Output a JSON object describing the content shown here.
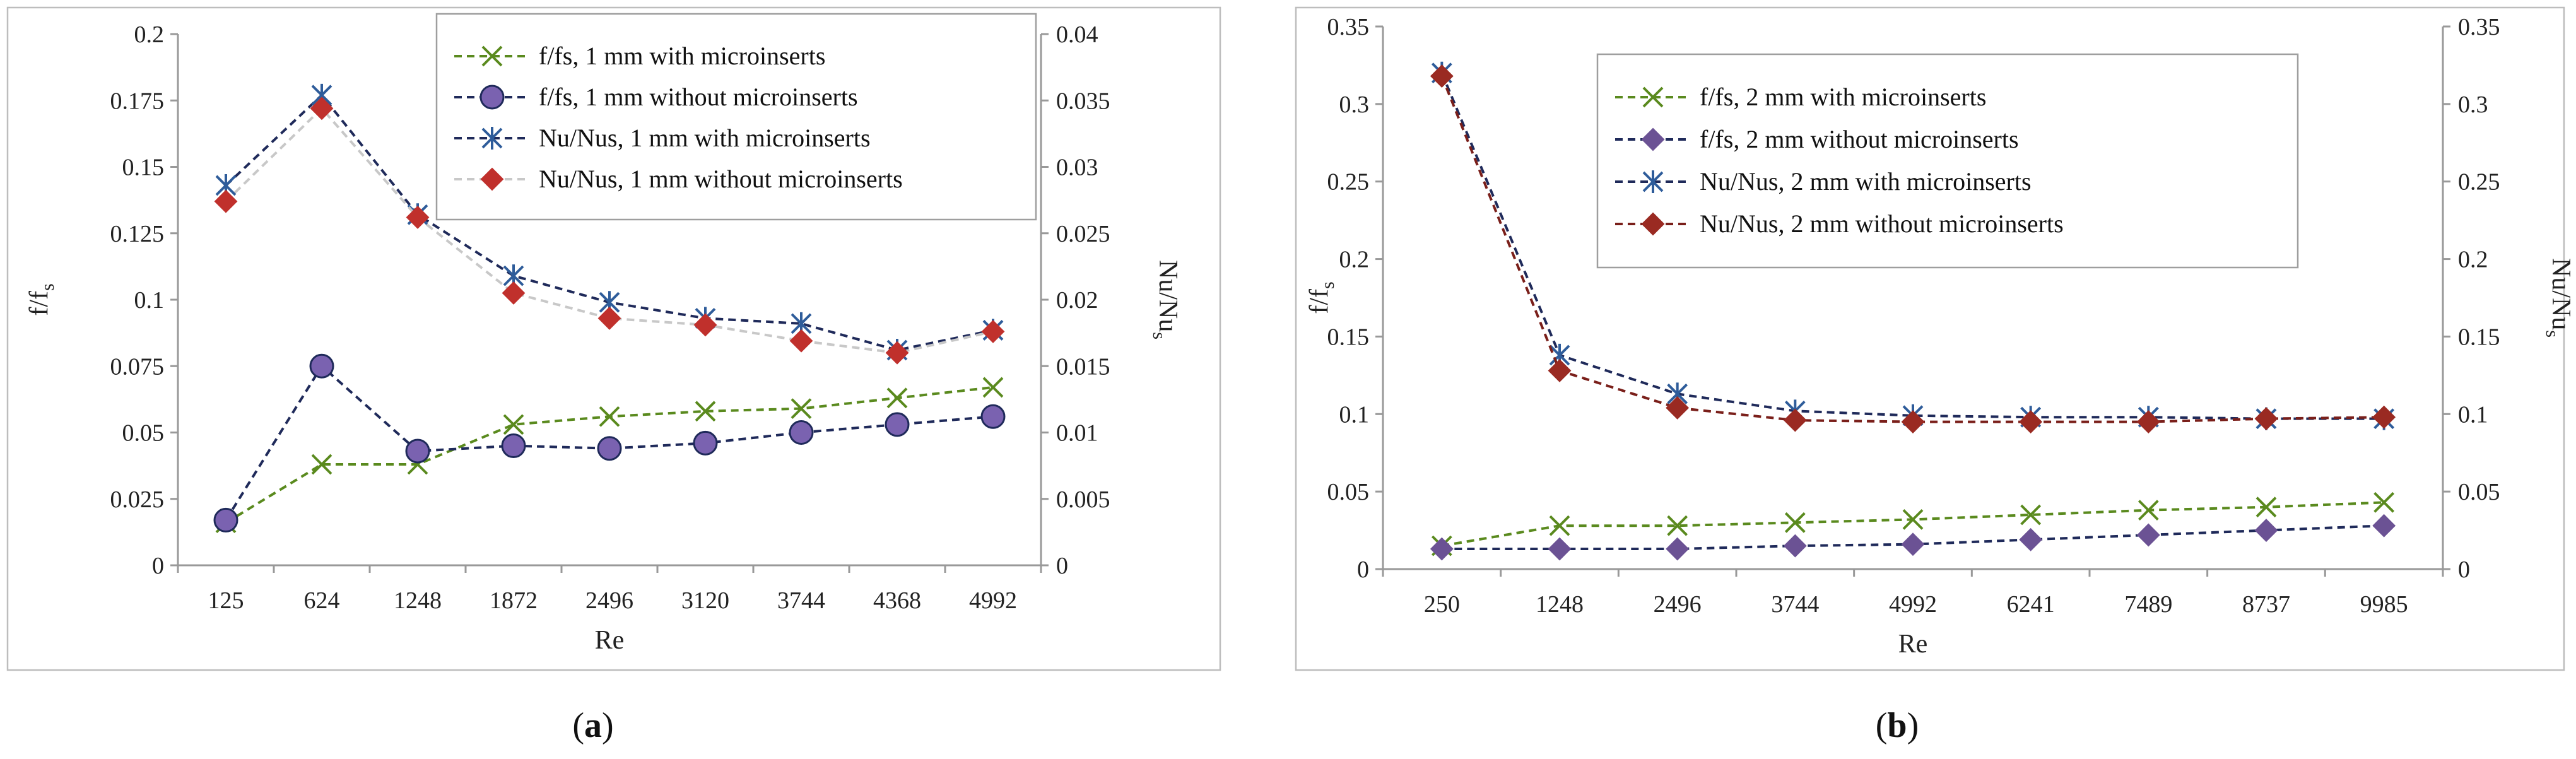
{
  "chart_data": [
    {
      "type": "line",
      "panel_label": "a",
      "xlabel": "Re",
      "ylabel_left": "f/f",
      "ylabel_left_sub": "s",
      "ylabel_right": "Nu/Nu",
      "ylabel_right_sub": "s",
      "categories": [
        "125",
        "624",
        "1248",
        "1872",
        "2496",
        "3120",
        "3744",
        "4368",
        "4992"
      ],
      "ylim_left": [
        0,
        0.2
      ],
      "ylim_right": [
        0,
        0.04
      ],
      "yticks_left": [
        "0",
        "0.025",
        "0.05",
        "0.075",
        "0.1",
        "0.125",
        "0.15",
        "0.175",
        "0.2"
      ],
      "yticks_right": [
        "0",
        "0.005",
        "0.01",
        "0.015",
        "0.02",
        "0.025",
        "0.03",
        "0.035",
        "0.04"
      ],
      "legend_position": "top-right",
      "series": [
        {
          "name": "f/fs, 1 mm with microinserts",
          "axis": "left",
          "marker": "x",
          "color": "#5a8a1e",
          "line_color": "#5a8a1e",
          "values": [
            0.016,
            0.038,
            0.038,
            0.053,
            0.056,
            0.058,
            0.059,
            0.063,
            0.067
          ]
        },
        {
          "name": "f/fs, 1 mm without microinserts",
          "axis": "left",
          "marker": "circle",
          "color": "#7a62b0",
          "line_color": "#1f2a5a",
          "values": [
            0.017,
            0.075,
            0.043,
            0.045,
            0.044,
            0.046,
            0.05,
            0.053,
            0.056
          ]
        },
        {
          "name": "Nu/Nus, 1 mm with microinserts",
          "axis": "right",
          "marker": "asterisk",
          "color": "#2e5c9a",
          "line_color": "#1f2a5a",
          "values": [
            0.0286,
            0.0354,
            0.0264,
            0.0218,
            0.0198,
            0.0186,
            0.0182,
            0.0162,
            0.0177
          ]
        },
        {
          "name": "Nu/Nus, 1 mm without microinserts",
          "axis": "right",
          "marker": "diamond",
          "color": "#c0302c",
          "line_color": "#c8c8c8",
          "values": [
            0.0274,
            0.0344,
            0.0262,
            0.0205,
            0.0186,
            0.0181,
            0.0169,
            0.016,
            0.0176
          ]
        }
      ]
    },
    {
      "type": "line",
      "panel_label": "b",
      "xlabel": "Re",
      "ylabel_left": "f/f",
      "ylabel_left_sub": "s",
      "ylabel_right": "Nu/Nu",
      "ylabel_right_sub": "s",
      "categories": [
        "250",
        "1248",
        "2496",
        "3744",
        "4992",
        "6241",
        "7489",
        "8737",
        "9985"
      ],
      "ylim_left": [
        0,
        0.35
      ],
      "ylim_right": [
        0,
        0.35
      ],
      "yticks_left": [
        "0",
        "0.05",
        "0.1",
        "0.15",
        "0.2",
        "0.25",
        "0.3",
        "0.35"
      ],
      "yticks_right": [
        "0",
        "0.05",
        "0.1",
        "0.15",
        "0.2",
        "0.25",
        "0.3",
        "0.35"
      ],
      "legend_position": "top-center",
      "series": [
        {
          "name": "f/fs, 2 mm with microinserts",
          "axis": "left",
          "marker": "x",
          "color": "#5a8a1e",
          "line_color": "#5a8a1e",
          "values": [
            0.015,
            0.028,
            0.028,
            0.03,
            0.032,
            0.035,
            0.038,
            0.04,
            0.043
          ]
        },
        {
          "name": "f/fs, 2 mm without microinserts",
          "axis": "left",
          "marker": "diamond",
          "color": "#6b5294",
          "line_color": "#1f2a5a",
          "values": [
            0.013,
            0.013,
            0.013,
            0.015,
            0.016,
            0.019,
            0.022,
            0.025,
            0.028
          ]
        },
        {
          "name": "Nu/Nus, 2 mm with microinserts",
          "axis": "right",
          "marker": "asterisk",
          "color": "#2e5c9a",
          "line_color": "#1f2a5a",
          "values": [
            0.32,
            0.138,
            0.113,
            0.102,
            0.099,
            0.098,
            0.098,
            0.097,
            0.097
          ]
        },
        {
          "name": "Nu/Nus, 2 mm without microinserts",
          "axis": "right",
          "marker": "diamond",
          "color": "#9a2a22",
          "line_color": "#7a1f1a",
          "values": [
            0.318,
            0.128,
            0.104,
            0.096,
            0.095,
            0.095,
            0.095,
            0.097,
            0.098
          ]
        }
      ]
    }
  ]
}
